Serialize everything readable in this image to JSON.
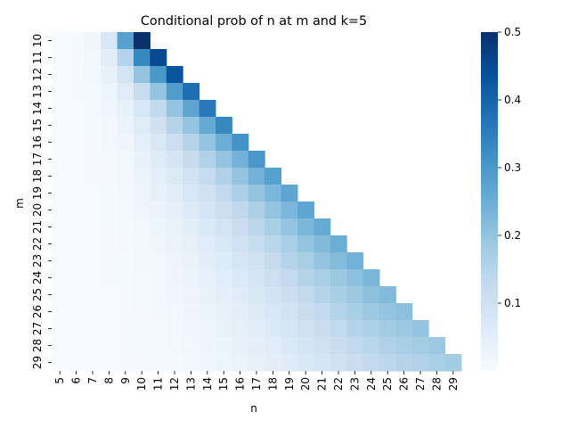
{
  "chart_data": {
    "type": "heatmap",
    "title": "Conditional prob of n at m and k=5",
    "xlabel": "n",
    "ylabel": "m",
    "x": [
      "5",
      "6",
      "7",
      "8",
      "9",
      "10",
      "11",
      "12",
      "13",
      "14",
      "15",
      "16",
      "17",
      "18",
      "19",
      "20",
      "21",
      "22",
      "23",
      "24",
      "25",
      "26",
      "27",
      "28",
      "29"
    ],
    "y": [
      "10",
      "11",
      "12",
      "13",
      "14",
      "15",
      "16",
      "17",
      "18",
      "19",
      "20",
      "21",
      "22",
      "23",
      "24",
      "25",
      "26",
      "27",
      "28",
      "29"
    ],
    "mask": "upper-triangle: cells with n > m are blank",
    "values": [
      [
        0.001,
        0.004,
        0.02,
        0.08,
        0.28,
        0.5
      ],
      [
        0.001,
        0.003,
        0.015,
        0.05,
        0.15,
        0.33,
        0.45
      ],
      [
        0.001,
        0.002,
        0.01,
        0.035,
        0.09,
        0.2,
        0.3,
        0.43
      ],
      [
        0.001,
        0.002,
        0.007,
        0.025,
        0.06,
        0.12,
        0.2,
        0.29,
        0.38
      ],
      [
        0.0,
        0.001,
        0.005,
        0.018,
        0.04,
        0.08,
        0.13,
        0.2,
        0.27,
        0.36
      ],
      [
        0.0,
        0.001,
        0.004,
        0.013,
        0.03,
        0.06,
        0.1,
        0.15,
        0.2,
        0.26,
        0.33
      ],
      [
        0.0,
        0.001,
        0.003,
        0.01,
        0.022,
        0.045,
        0.075,
        0.11,
        0.15,
        0.2,
        0.25,
        0.31
      ],
      [
        0.0,
        0.0,
        0.002,
        0.008,
        0.017,
        0.035,
        0.06,
        0.085,
        0.12,
        0.16,
        0.2,
        0.24,
        0.3
      ],
      [
        0.0,
        0.0,
        0.002,
        0.006,
        0.014,
        0.028,
        0.047,
        0.068,
        0.095,
        0.125,
        0.16,
        0.2,
        0.24,
        0.28
      ],
      [
        0.0,
        0.0,
        0.001,
        0.005,
        0.011,
        0.022,
        0.038,
        0.055,
        0.077,
        0.1,
        0.13,
        0.165,
        0.2,
        0.23,
        0.27
      ],
      [
        0.0,
        0.0,
        0.001,
        0.004,
        0.009,
        0.018,
        0.031,
        0.045,
        0.063,
        0.085,
        0.11,
        0.135,
        0.165,
        0.2,
        0.23,
        0.27
      ],
      [
        0.0,
        0.0,
        0.001,
        0.003,
        0.007,
        0.015,
        0.025,
        0.037,
        0.052,
        0.07,
        0.09,
        0.115,
        0.14,
        0.17,
        0.2,
        0.23,
        0.26
      ],
      [
        0.0,
        0.0,
        0.001,
        0.003,
        0.006,
        0.012,
        0.021,
        0.031,
        0.044,
        0.059,
        0.076,
        0.097,
        0.12,
        0.145,
        0.17,
        0.2,
        0.22,
        0.25
      ],
      [
        0.0,
        0.0,
        0.0,
        0.002,
        0.005,
        0.01,
        0.017,
        0.026,
        0.037,
        0.05,
        0.065,
        0.082,
        0.1,
        0.125,
        0.15,
        0.17,
        0.2,
        0.22,
        0.24
      ],
      [
        0.0,
        0.0,
        0.0,
        0.002,
        0.004,
        0.008,
        0.014,
        0.022,
        0.031,
        0.042,
        0.055,
        0.07,
        0.087,
        0.106,
        0.127,
        0.15,
        0.17,
        0.19,
        0.21,
        0.23
      ],
      [
        0.0,
        0.0,
        0.0,
        0.001,
        0.003,
        0.007,
        0.012,
        0.018,
        0.026,
        0.036,
        0.047,
        0.06,
        0.075,
        0.092,
        0.11,
        0.13,
        0.15,
        0.17,
        0.19,
        0.21,
        0.22
      ],
      [
        0.0,
        0.0,
        0.0,
        0.001,
        0.003,
        0.006,
        0.01,
        0.015,
        0.022,
        0.03,
        0.04,
        0.051,
        0.064,
        0.079,
        0.095,
        0.112,
        0.13,
        0.15,
        0.17,
        0.19,
        0.2,
        0.21
      ],
      [
        0.0,
        0.0,
        0.0,
        0.001,
        0.002,
        0.005,
        0.008,
        0.013,
        0.019,
        0.026,
        0.034,
        0.044,
        0.055,
        0.068,
        0.082,
        0.098,
        0.115,
        0.13,
        0.15,
        0.165,
        0.18,
        0.19,
        0.2
      ],
      [
        0.0,
        0.0,
        0.0,
        0.001,
        0.002,
        0.004,
        0.007,
        0.011,
        0.016,
        0.022,
        0.029,
        0.038,
        0.047,
        0.058,
        0.071,
        0.085,
        0.1,
        0.115,
        0.13,
        0.145,
        0.16,
        0.17,
        0.18,
        0.19
      ],
      [
        0.0,
        0.0,
        0.0,
        0.001,
        0.002,
        0.003,
        0.006,
        0.009,
        0.013,
        0.019,
        0.025,
        0.032,
        0.041,
        0.05,
        0.061,
        0.073,
        0.086,
        0.1,
        0.115,
        0.13,
        0.14,
        0.15,
        0.16,
        0.17,
        0.18
      ]
    ],
    "colorbar": {
      "colormap": "Blues",
      "range": [
        0.0,
        0.5
      ],
      "ticks": [
        "0.1",
        "0.2",
        "0.3",
        "0.4",
        "0.5"
      ],
      "tick_values": [
        0.1,
        0.2,
        0.3,
        0.4,
        0.5
      ]
    },
    "grid": false,
    "legend": "colorbar at right"
  }
}
